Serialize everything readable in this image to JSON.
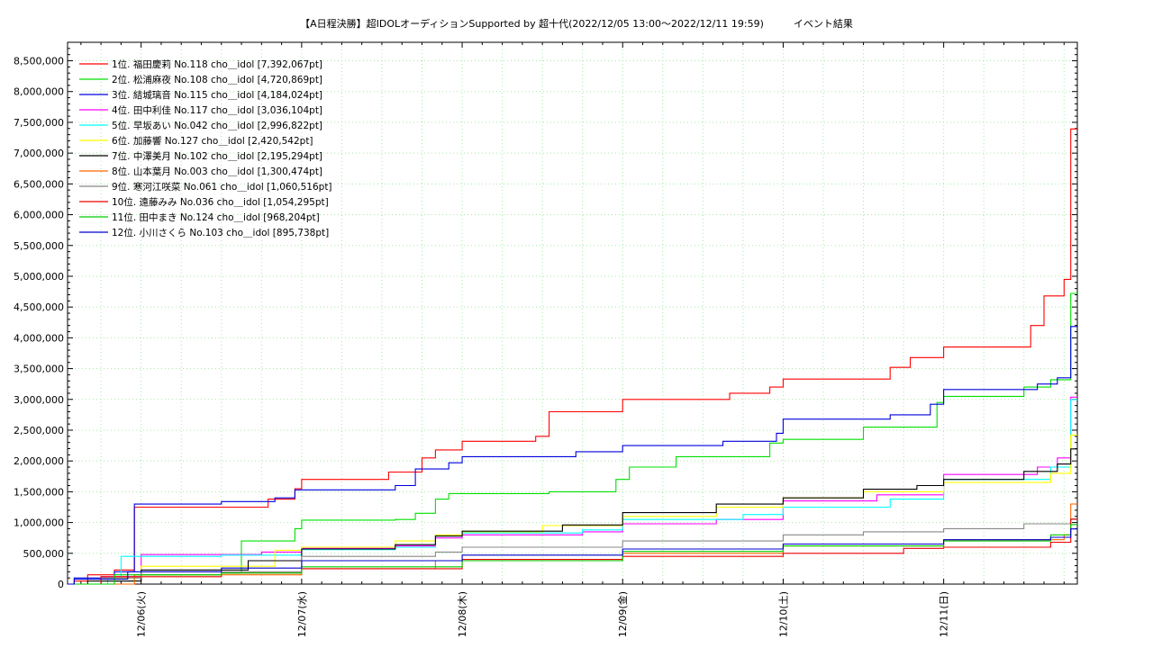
{
  "chart_data": {
    "type": "line",
    "title": "【A日程決勝】超IDOLオーディションSupported by 超十代(2022/12/05 13:00～2022/12/11 19:59)　　　イベント結果",
    "xlabel": "",
    "ylabel": "",
    "x_start": "2022-12-05 13:00",
    "x_end": "2022-12-11 19:59",
    "ylim": [
      0,
      8800000
    ],
    "y_ticks": [
      0,
      500000,
      1000000,
      1500000,
      2000000,
      2500000,
      3000000,
      3500000,
      4000000,
      4500000,
      5000000,
      5500000,
      6000000,
      6500000,
      7000000,
      7500000,
      8000000,
      8500000
    ],
    "y_tick_labels": [
      "0",
      "500,000",
      "1,000,000",
      "1,500,000",
      "2,000,000",
      "2,500,000",
      "3,000,000",
      "3,500,000",
      "4,000,000",
      "4,500,000",
      "5,000,000",
      "5,500,000",
      "6,000,000",
      "6,500,000",
      "7,000,000",
      "7,500,000",
      "8,000,000",
      "8,500,000"
    ],
    "x_ticks": [
      {
        "label": "12/06(火)",
        "t": "2022-12-06 00:00"
      },
      {
        "label": "12/07(水)",
        "t": "2022-12-07 00:00"
      },
      {
        "label": "12/08(木)",
        "t": "2022-12-08 00:00"
      },
      {
        "label": "12/09(金)",
        "t": "2022-12-09 00:00"
      },
      {
        "label": "12/10(土)",
        "t": "2022-12-10 00:00"
      },
      {
        "label": "12/11(日)",
        "t": "2022-12-11 00:00"
      }
    ],
    "grid": true,
    "legend_position": "top-left",
    "series": [
      {
        "name": "1位. 福田慶莉 No.118 cho＿idol [7,392,067pt]",
        "color": "#ff0000",
        "points": [
          [
            "2022-12-05 13:00",
            0
          ],
          [
            "2022-12-05 14:00",
            50000
          ],
          [
            "2022-12-05 16:00",
            150000
          ],
          [
            "2022-12-05 20:00",
            230000
          ],
          [
            "2022-12-05 23:00",
            1250000
          ],
          [
            "2022-12-06 19:00",
            1380000
          ],
          [
            "2022-12-06 23:00",
            1550000
          ],
          [
            "2022-12-07 00:00",
            1700000
          ],
          [
            "2022-12-07 13:00",
            1820000
          ],
          [
            "2022-12-07 18:00",
            2050000
          ],
          [
            "2022-12-07 20:00",
            2180000
          ],
          [
            "2022-12-08 00:00",
            2320000
          ],
          [
            "2022-12-08 11:00",
            2400000
          ],
          [
            "2022-12-08 13:00",
            2800000
          ],
          [
            "2022-12-09 00:00",
            3000000
          ],
          [
            "2022-12-09 16:00",
            3100000
          ],
          [
            "2022-12-09 22:00",
            3200000
          ],
          [
            "2022-12-10 00:00",
            3330000
          ],
          [
            "2022-12-10 16:00",
            3520000
          ],
          [
            "2022-12-10 19:00",
            3680000
          ],
          [
            "2022-12-11 00:00",
            3850000
          ],
          [
            "2022-12-11 13:00",
            4200000
          ],
          [
            "2022-12-11 15:00",
            4680000
          ],
          [
            "2022-12-11 18:00",
            4950000
          ],
          [
            "2022-12-11 19:00",
            7392067
          ]
        ]
      },
      {
        "name": "2位. 松浦麻夜 No.108 cho＿idol [4,720,869pt]",
        "color": "#00e000",
        "points": [
          [
            "2022-12-05 13:00",
            0
          ],
          [
            "2022-12-05 18:00",
            50000
          ],
          [
            "2022-12-05 23:00",
            150000
          ],
          [
            "2022-12-06 12:00",
            180000
          ],
          [
            "2022-12-06 15:00",
            700000
          ],
          [
            "2022-12-06 23:00",
            900000
          ],
          [
            "2022-12-07 00:00",
            1040000
          ],
          [
            "2022-12-07 14:00",
            1050000
          ],
          [
            "2022-12-07 17:00",
            1150000
          ],
          [
            "2022-12-07 20:00",
            1380000
          ],
          [
            "2022-12-07 22:00",
            1470000
          ],
          [
            "2022-12-08 13:00",
            1500000
          ],
          [
            "2022-12-08 23:00",
            1700000
          ],
          [
            "2022-12-09 01:00",
            1900000
          ],
          [
            "2022-12-09 08:00",
            2070000
          ],
          [
            "2022-12-09 22:00",
            2290000
          ],
          [
            "2022-12-10 00:00",
            2350000
          ],
          [
            "2022-12-10 12:00",
            2550000
          ],
          [
            "2022-12-10 23:00",
            2950000
          ],
          [
            "2022-12-11 00:00",
            3050000
          ],
          [
            "2022-12-11 12:00",
            3200000
          ],
          [
            "2022-12-11 16:00",
            3320000
          ],
          [
            "2022-12-11 19:00",
            4720869
          ]
        ]
      },
      {
        "name": "3位. 結城璃音 No.115 cho＿idol [4,184,024pt]",
        "color": "#0000dd",
        "points": [
          [
            "2022-12-05 13:00",
            0
          ],
          [
            "2022-12-05 14:00",
            100000
          ],
          [
            "2022-12-05 20:00",
            200000
          ],
          [
            "2022-12-05 23:00",
            1300000
          ],
          [
            "2022-12-06 12:00",
            1340000
          ],
          [
            "2022-12-06 20:00",
            1400000
          ],
          [
            "2022-12-06 23:00",
            1530000
          ],
          [
            "2022-12-07 14:00",
            1600000
          ],
          [
            "2022-12-07 17:00",
            1870000
          ],
          [
            "2022-12-07 22:00",
            1970000
          ],
          [
            "2022-12-08 00:00",
            2070000
          ],
          [
            "2022-12-08 17:00",
            2150000
          ],
          [
            "2022-12-09 00:00",
            2250000
          ],
          [
            "2022-12-09 15:00",
            2320000
          ],
          [
            "2022-12-09 23:00",
            2450000
          ],
          [
            "2022-12-10 00:00",
            2680000
          ],
          [
            "2022-12-10 16:00",
            2750000
          ],
          [
            "2022-12-10 22:00",
            2920000
          ],
          [
            "2022-12-11 00:00",
            3160000
          ],
          [
            "2022-12-11 14:00",
            3250000
          ],
          [
            "2022-12-11 17:00",
            3350000
          ],
          [
            "2022-12-11 19:00",
            4184024
          ]
        ]
      },
      {
        "name": "4位. 田中利佳 No.117 cho＿idol [3,036,104pt]",
        "color": "#ff00ff",
        "points": [
          [
            "2022-12-05 13:00",
            0
          ],
          [
            "2022-12-05 18:00",
            120000
          ],
          [
            "2022-12-06 00:00",
            480000
          ],
          [
            "2022-12-06 18:00",
            520000
          ],
          [
            "2022-12-07 00:00",
            580000
          ],
          [
            "2022-12-07 14:00",
            620000
          ],
          [
            "2022-12-07 20:00",
            750000
          ],
          [
            "2022-12-08 00:00",
            800000
          ],
          [
            "2022-12-08 18:00",
            850000
          ],
          [
            "2022-12-09 00:00",
            980000
          ],
          [
            "2022-12-09 14:00",
            1050000
          ],
          [
            "2022-12-10 00:00",
            1350000
          ],
          [
            "2022-12-10 14:00",
            1450000
          ],
          [
            "2022-12-11 00:00",
            1780000
          ],
          [
            "2022-12-11 14:00",
            1900000
          ],
          [
            "2022-12-11 17:00",
            2050000
          ],
          [
            "2022-12-11 19:00",
            3036104
          ]
        ]
      },
      {
        "name": "5位. 早坂あい No.042 cho＿idol [2,996,822pt]",
        "color": "#00ffff",
        "points": [
          [
            "2022-12-05 13:00",
            0
          ],
          [
            "2022-12-05 19:00",
            100000
          ],
          [
            "2022-12-05 21:00",
            450000
          ],
          [
            "2022-12-06 12:00",
            470000
          ],
          [
            "2022-12-07 00:00",
            560000
          ],
          [
            "2022-12-07 14:00",
            600000
          ],
          [
            "2022-12-07 20:00",
            780000
          ],
          [
            "2022-12-08 00:00",
            830000
          ],
          [
            "2022-12-08 18:00",
            880000
          ],
          [
            "2022-12-09 00:00",
            1050000
          ],
          [
            "2022-12-09 18:00",
            1130000
          ],
          [
            "2022-12-10 00:00",
            1250000
          ],
          [
            "2022-12-10 16:00",
            1380000
          ],
          [
            "2022-12-11 00:00",
            1700000
          ],
          [
            "2022-12-11 16:00",
            1900000
          ],
          [
            "2022-12-11 19:00",
            2996822
          ]
        ]
      },
      {
        "name": "6位. 加藤響 No.127 cho＿idol [2,420,542pt]",
        "color": "#ffff00",
        "points": [
          [
            "2022-12-05 13:00",
            0
          ],
          [
            "2022-12-05 20:00",
            100000
          ],
          [
            "2022-12-06 00:00",
            290000
          ],
          [
            "2022-12-06 20:00",
            550000
          ],
          [
            "2022-12-07 00:00",
            600000
          ],
          [
            "2022-12-07 14:00",
            700000
          ],
          [
            "2022-12-07 20:00",
            800000
          ],
          [
            "2022-12-08 00:00",
            850000
          ],
          [
            "2022-12-08 12:00",
            950000
          ],
          [
            "2022-12-09 00:00",
            1100000
          ],
          [
            "2022-12-09 14:00",
            1250000
          ],
          [
            "2022-12-10 00:00",
            1400000
          ],
          [
            "2022-12-10 12:00",
            1500000
          ],
          [
            "2022-12-11 00:00",
            1650000
          ],
          [
            "2022-12-11 16:00",
            1800000
          ],
          [
            "2022-12-11 19:00",
            2420542
          ]
        ]
      },
      {
        "name": "7位. 中澤美月 No.102 cho＿idol [2,195,294pt]",
        "color": "#000000",
        "points": [
          [
            "2022-12-05 13:00",
            0
          ],
          [
            "2022-12-05 16:00",
            50000
          ],
          [
            "2022-12-06 00:00",
            230000
          ],
          [
            "2022-12-06 16:00",
            380000
          ],
          [
            "2022-12-07 00:00",
            570000
          ],
          [
            "2022-12-07 14:00",
            640000
          ],
          [
            "2022-12-07 20:00",
            780000
          ],
          [
            "2022-12-08 00:00",
            860000
          ],
          [
            "2022-12-08 15:00",
            960000
          ],
          [
            "2022-12-09 00:00",
            1160000
          ],
          [
            "2022-12-09 14:00",
            1300000
          ],
          [
            "2022-12-10 00:00",
            1400000
          ],
          [
            "2022-12-10 12:00",
            1540000
          ],
          [
            "2022-12-10 20:00",
            1600000
          ],
          [
            "2022-12-11 00:00",
            1700000
          ],
          [
            "2022-12-11 12:00",
            1830000
          ],
          [
            "2022-12-11 17:00",
            1950000
          ],
          [
            "2022-12-11 19:00",
            2195294
          ]
        ]
      },
      {
        "name": "8位. 山本葉月 No.003 cho＿idol [1,300,474pt]",
        "color": "#ff6600",
        "points": [
          [
            "2022-12-05 13:00",
            0
          ],
          [
            "2022-12-05 23:00",
            150000
          ],
          [
            "2022-12-07 00:00",
            250000
          ],
          [
            "2022-12-07 20:00",
            380000
          ],
          [
            "2022-12-09 00:00",
            500000
          ],
          [
            "2022-12-10 00:00",
            620000
          ],
          [
            "2022-12-11 00:00",
            720000
          ],
          [
            "2022-12-11 18:00",
            800000
          ],
          [
            "2022-12-11 19:00",
            1300474
          ]
        ]
      },
      {
        "name": "9位. 寒河江咲菜 No.061 cho＿idol [1,060,516pt]",
        "color": "#888888",
        "points": [
          [
            "2022-12-05 13:00",
            0
          ],
          [
            "2022-12-05 18:00",
            100000
          ],
          [
            "2022-12-06 00:00",
            200000
          ],
          [
            "2022-12-07 00:00",
            450000
          ],
          [
            "2022-12-07 20:00",
            520000
          ],
          [
            "2022-12-08 00:00",
            600000
          ],
          [
            "2022-12-09 00:00",
            700000
          ],
          [
            "2022-12-10 00:00",
            800000
          ],
          [
            "2022-12-10 12:00",
            850000
          ],
          [
            "2022-12-11 00:00",
            900000
          ],
          [
            "2022-12-11 12:00",
            980000
          ],
          [
            "2022-12-11 19:00",
            1060516
          ]
        ]
      },
      {
        "name": "10位. 遠藤みみ No.036 cho＿idol [1,054,295pt]",
        "color": "#ee0000",
        "points": [
          [
            "2022-12-05 13:00",
            0
          ],
          [
            "2022-12-05 18:00",
            120000
          ],
          [
            "2022-12-06 12:00",
            180000
          ],
          [
            "2022-12-07 00:00",
            250000
          ],
          [
            "2022-12-08 00:00",
            400000
          ],
          [
            "2022-12-09 00:00",
            450000
          ],
          [
            "2022-12-10 00:00",
            500000
          ],
          [
            "2022-12-10 18:00",
            580000
          ],
          [
            "2022-12-11 00:00",
            600000
          ],
          [
            "2022-12-11 16:00",
            680000
          ],
          [
            "2022-12-11 19:00",
            1054295
          ]
        ]
      },
      {
        "name": "11位. 田中まき No.124 cho＿idol [968,204pt]",
        "color": "#00cc00",
        "points": [
          [
            "2022-12-05 13:00",
            0
          ],
          [
            "2022-12-05 20:00",
            150000
          ],
          [
            "2022-12-06 12:00",
            180000
          ],
          [
            "2022-12-07 00:00",
            280000
          ],
          [
            "2022-12-08 00:00",
            380000
          ],
          [
            "2022-12-09 00:00",
            530000
          ],
          [
            "2022-12-10 00:00",
            620000
          ],
          [
            "2022-12-11 00:00",
            700000
          ],
          [
            "2022-12-11 16:00",
            800000
          ],
          [
            "2022-12-11 19:00",
            968204
          ]
        ]
      },
      {
        "name": "12位. 小川さくら No.103 cho＿idol [895,738pt]",
        "color": "#0000cc",
        "points": [
          [
            "2022-12-05 13:00",
            0
          ],
          [
            "2022-12-05 14:00",
            80000
          ],
          [
            "2022-12-05 22:00",
            200000
          ],
          [
            "2022-12-06 12:00",
            260000
          ],
          [
            "2022-12-07 00:00",
            380000
          ],
          [
            "2022-12-08 00:00",
            470000
          ],
          [
            "2022-12-09 00:00",
            570000
          ],
          [
            "2022-12-10 00:00",
            650000
          ],
          [
            "2022-12-11 00:00",
            720000
          ],
          [
            "2022-12-11 16:00",
            760000
          ],
          [
            "2022-12-11 19:00",
            895738
          ]
        ]
      }
    ]
  }
}
